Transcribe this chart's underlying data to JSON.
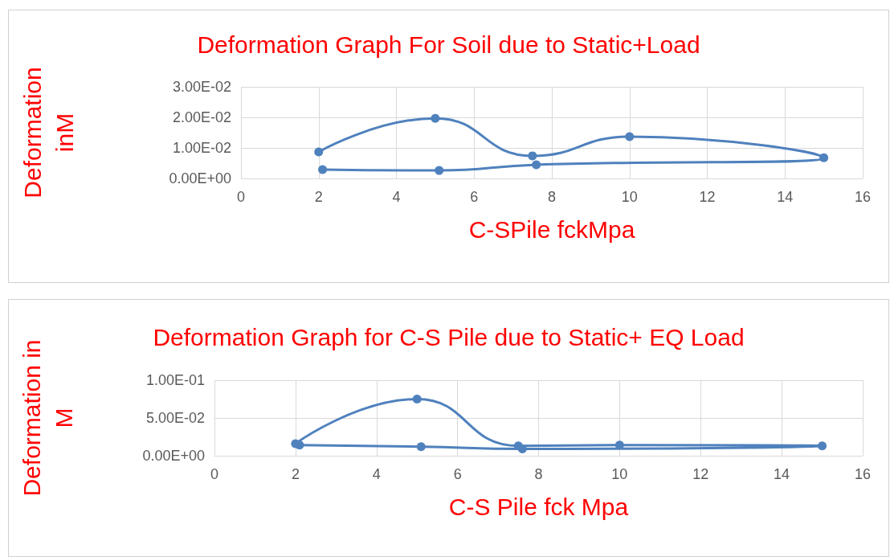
{
  "chart_data": [
    {
      "type": "line",
      "title": "Deformation Graph For Soil due to Static+Load",
      "xlabel": "C-SPile fckMpa",
      "ylabel": "Deformation\ninM",
      "series": [
        {
          "color": "#4f81bd",
          "x": [
            2,
            5,
            7.5,
            10,
            15,
            7.6,
            5.1,
            2.1
          ],
          "values": [
            0.0087,
            0.0197,
            0.0074,
            0.0137,
            0.0068,
            0.0045,
            0.0026,
            0.0029
          ]
        }
      ],
      "xlim": [
        0,
        16
      ],
      "xticks": [
        0,
        2,
        4,
        6,
        8,
        10,
        12,
        14,
        16
      ],
      "ylim": [
        0,
        0.03
      ],
      "yticks": [
        {
          "value": 0,
          "label": "0.00E+00"
        },
        {
          "value": 0.01,
          "label": "1.00E-02"
        },
        {
          "value": 0.02,
          "label": "2.00E-02"
        },
        {
          "value": 0.03,
          "label": "3.00E-02"
        }
      ],
      "grid": true,
      "marker": "circle",
      "line_style": "solid"
    },
    {
      "type": "line",
      "title": "Deformation Graph for C-S Pile due to Static+ EQ Load",
      "xlabel": "C-S Pile fck Mpa",
      "ylabel": "Deformation in\nM",
      "series": [
        {
          "color": "#4f81bd",
          "x": [
            2,
            5,
            7.5,
            10,
            15,
            7.6,
            5.1,
            2.1
          ],
          "values": [
            0.016,
            0.075,
            0.013,
            0.014,
            0.013,
            0.009,
            0.012,
            0.014
          ]
        }
      ],
      "xlim": [
        0,
        16
      ],
      "xticks": [
        0,
        2,
        4,
        6,
        8,
        10,
        12,
        14,
        16
      ],
      "ylim": [
        0,
        0.1
      ],
      "yticks": [
        {
          "value": 0,
          "label": "0.00E+00"
        },
        {
          "value": 0.05,
          "label": "5.00E-02"
        },
        {
          "value": 0.1,
          "label": "1.00E-01"
        }
      ],
      "grid": true,
      "marker": "circle",
      "line_style": "solid"
    }
  ]
}
